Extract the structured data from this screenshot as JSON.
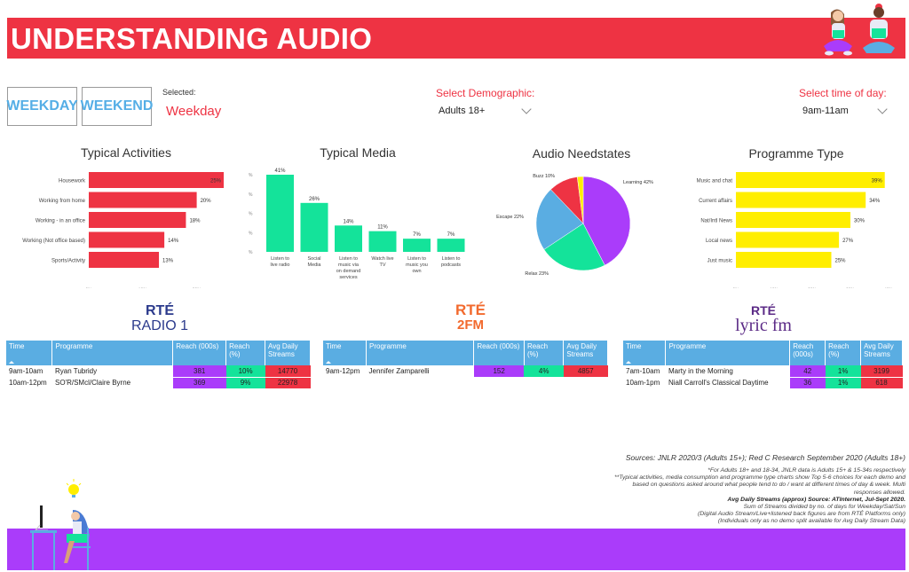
{
  "header": {
    "title": "UNDERSTANDING AUDIO"
  },
  "controls": {
    "weekday_label": "WEEKDAY",
    "weekend_label": "WEEKEND",
    "selected_label": "Selected:",
    "selected_value": "Weekday",
    "demographic_label": "Select Demographic:",
    "demographic_value": "Adults 18+",
    "time_label": "Select time of day:",
    "time_value": "9am-11am"
  },
  "colors": {
    "brand_red": "#ee3343",
    "teal": "#14e39a",
    "purple": "#aa3cfa",
    "yellow": "#ffee00",
    "blue": "#5aade2"
  },
  "chart_data": [
    {
      "id": "activities",
      "type": "bar",
      "orientation": "horizontal",
      "title": "Typical Activities",
      "categories": [
        "Housework",
        "Working from home",
        "Working - in an office",
        "Working (Not office based)",
        "Sports/Activity"
      ],
      "values": [
        25,
        20,
        18,
        14,
        13
      ],
      "data_labels": [
        "25%",
        "20%",
        "18%",
        "14%",
        "13%"
      ],
      "xticks": [
        "0%",
        "10%",
        "20%"
      ],
      "xlim": [
        0,
        25
      ],
      "color": "#ee3343"
    },
    {
      "id": "media",
      "type": "bar",
      "orientation": "vertical",
      "title": "Typical Media",
      "categories": [
        "Listen to live radio",
        "Social Media",
        "Listen to music via on demand services",
        "Watch live TV",
        "Listen to music you own",
        "Listen to podcasts"
      ],
      "category_lines": [
        [
          "Listen to",
          "live radio"
        ],
        [
          "Social",
          "Media"
        ],
        [
          "Listen to",
          "music via",
          "on demand",
          "services"
        ],
        [
          "Watch live",
          "TV"
        ],
        [
          "Listen to",
          "music you",
          "own"
        ],
        [
          "Listen to",
          "podcasts"
        ]
      ],
      "values": [
        41,
        26,
        14,
        11,
        7,
        7
      ],
      "data_labels": [
        "41%",
        "26%",
        "14%",
        "11%",
        "7%",
        "7%"
      ],
      "yticks": [
        "%",
        "%",
        "%",
        "%",
        "%"
      ],
      "ylim": [
        0,
        41
      ],
      "color": "#14e39a"
    },
    {
      "id": "needstates",
      "type": "pie",
      "title": "Audio Needstates",
      "slices": [
        {
          "label": "Learning",
          "value": 42,
          "text": "Learning 42%",
          "color": "#aa3cfa"
        },
        {
          "label": "Relax",
          "value": 23,
          "text": "Relax 23%",
          "color": "#14e39a"
        },
        {
          "label": "Escape",
          "value": 22,
          "text": "Escape 22%",
          "color": "#5aade2"
        },
        {
          "label": "Buzz",
          "value": 10,
          "text": "Buzz 10%",
          "color": "#ee3343"
        },
        {
          "label": "Other",
          "value": 2,
          "text": "",
          "color": "#ffee00"
        }
      ]
    },
    {
      "id": "programme",
      "type": "bar",
      "orientation": "horizontal",
      "title": "Programme Type",
      "categories": [
        "Music and chat",
        "Current affairs",
        "Nat/Intl News",
        "Local news",
        "Just music"
      ],
      "values": [
        39,
        34,
        30,
        27,
        25
      ],
      "data_labels": [
        "39%",
        "34%",
        "30%",
        "27%",
        "25%"
      ],
      "xticks": [
        "0%",
        "10%",
        "20%",
        "30%",
        "40%"
      ],
      "xlim": [
        0,
        40
      ],
      "color": "#ffee00"
    }
  ],
  "stations": [
    {
      "logo_top": "RTÉ",
      "logo_bottom": "RADIO 1",
      "logo_color": "#2b3a8c",
      "headers": [
        "Time",
        "Programme",
        "Reach (000s)",
        "Reach (%)",
        "Avg Daily Streams"
      ],
      "rows": [
        {
          "time": "9am-10am",
          "programme": "Ryan Tubridy",
          "reach": "381",
          "pct": "10%",
          "streams": "14770"
        },
        {
          "time": "10am-12pm",
          "programme": "SO'R/SMcl/Claire Byrne",
          "reach": "369",
          "pct": "9%",
          "streams": "22978"
        }
      ]
    },
    {
      "logo_top": "RTÉ",
      "logo_bottom": "2FM",
      "logo_color": "#f26a2e",
      "headers": [
        "Time",
        "Programme",
        "Reach (000s)",
        "Reach (%)",
        "Avg Daily Streams"
      ],
      "rows": [
        {
          "time": "9am-12pm",
          "programme": "Jennifer Zamparelli",
          "reach": "152",
          "pct": "4%",
          "streams": "4857"
        }
      ]
    },
    {
      "logo_top": "RTÉ",
      "logo_bottom": "lyric fm",
      "logo_color": "#5b2a86",
      "headers": [
        "Time",
        "Programme",
        "Reach (000s)",
        "Reach (%)",
        "Avg Daily Streams"
      ],
      "rows": [
        {
          "time": "7am-10am",
          "programme": "Marty in the Morning",
          "reach": "42",
          "pct": "1%",
          "streams": "3199"
        },
        {
          "time": "10am-1pm",
          "programme": "Niall Carroll's Classical Daytime",
          "reach": "36",
          "pct": "1%",
          "streams": "618"
        }
      ]
    }
  ],
  "notes": {
    "sources": "Sources: JNLR 2020/3 (Adults 15+); Red C Research September 2020 (Adults 18+)",
    "line1": "*For Adults 18+ and 18-34, JNLR data is Adults 15+ & 15-34s respectively",
    "line2": "**Typical activities, media consumption and programme type charts show Top 5-6 choices for each demo and  based on questions asked around what people tend to do / want at different times of day & week.  Multi responses allowed.",
    "line3": "Avg Daily Streams (approx) Source: ATInternet, Jul-Sept 2020.",
    "line4": "Sum of Streams divided by no. of days for Weekday/Sat/Sun",
    "line5": "(Digital Audio Stream/Live+listened back figures are from RTÉ Platforms only)",
    "line6": "(Individuals only as no demo split available for Avg Daily Stream Data)"
  }
}
